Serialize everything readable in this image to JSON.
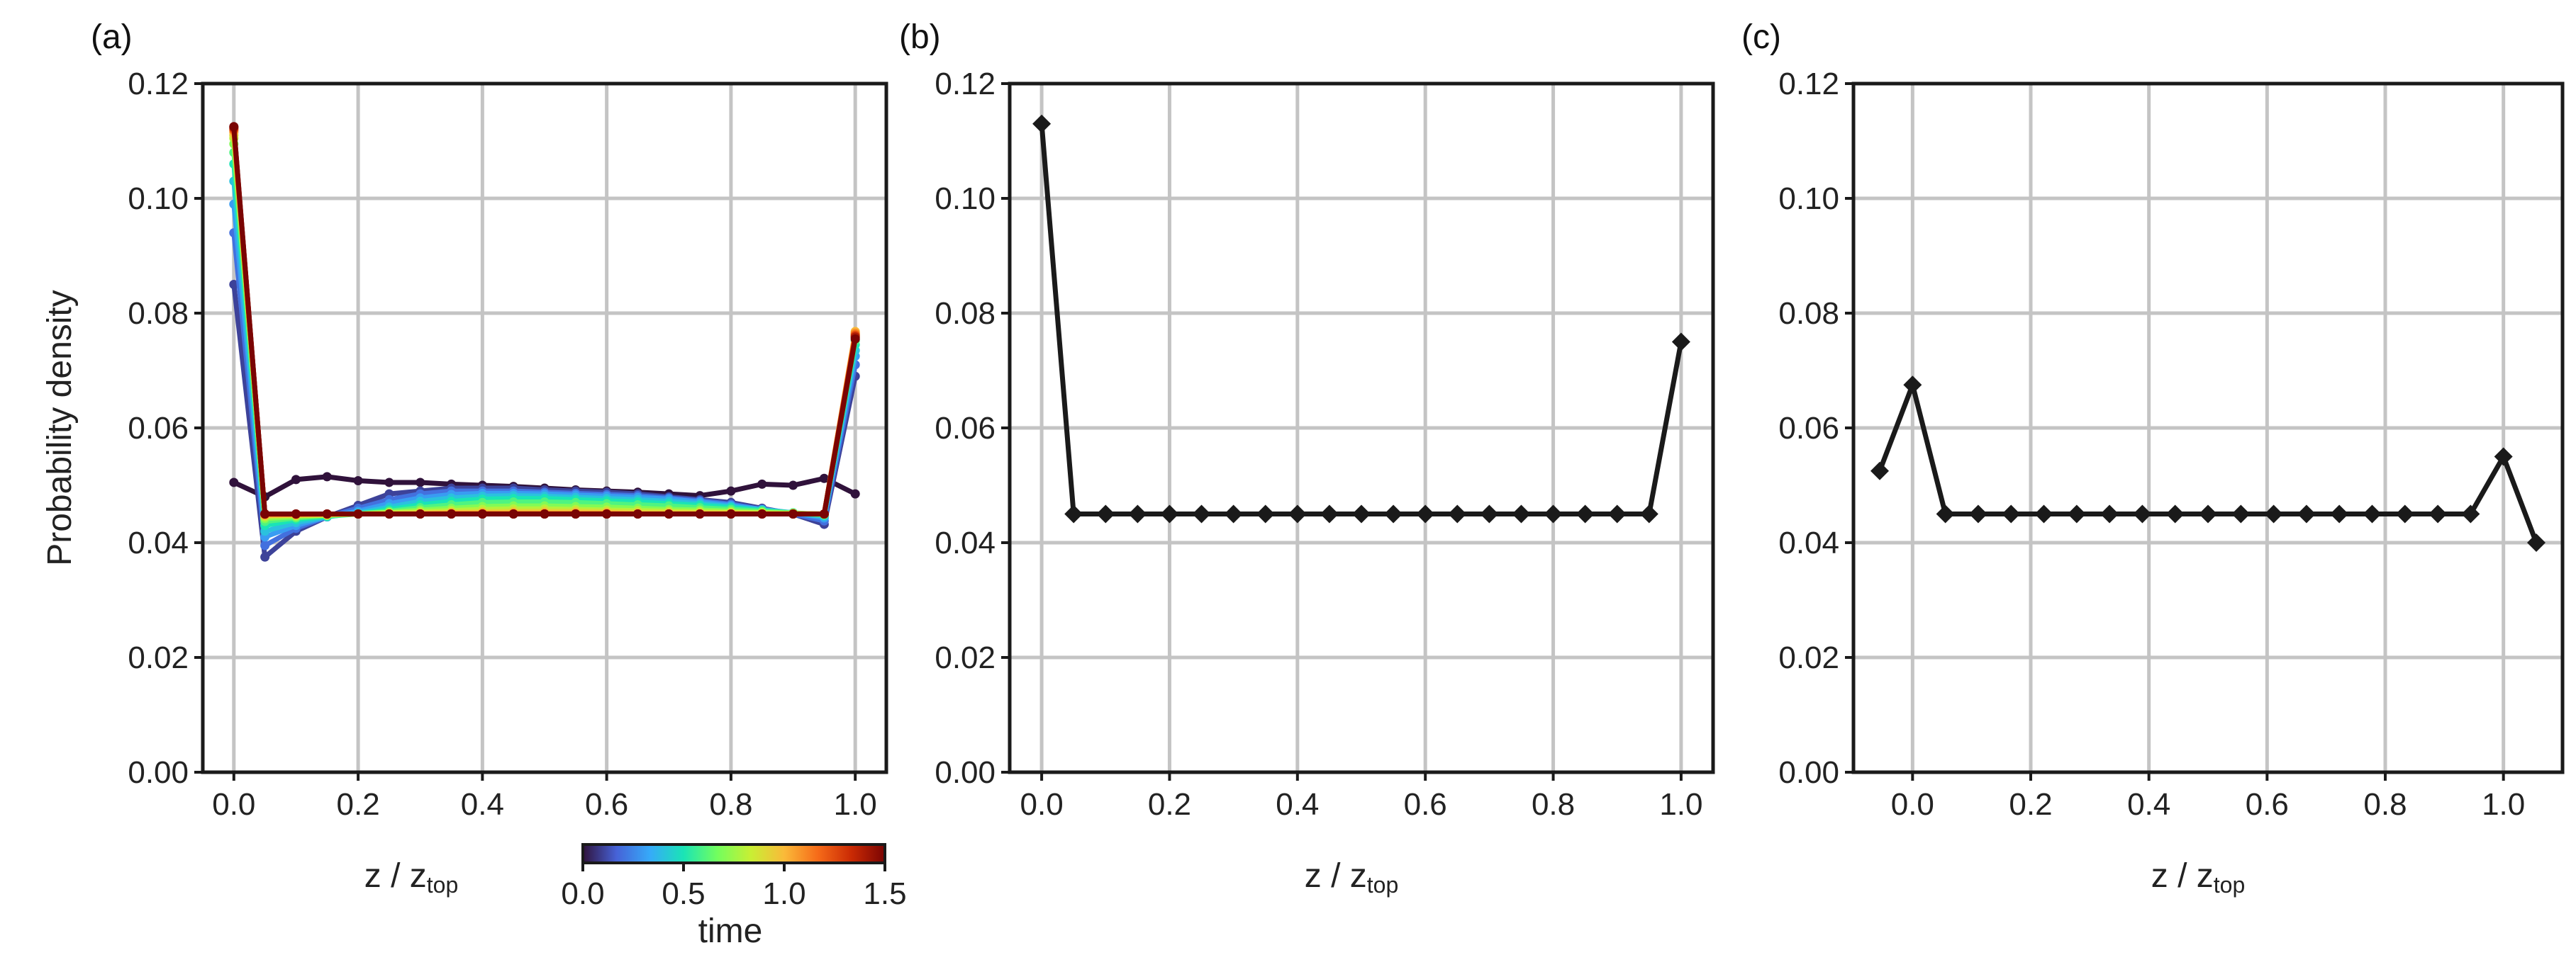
{
  "chart_data": [
    {
      "type": "line",
      "panel_label": "(a)",
      "xlabel": "z / z",
      "xlabel_sub": "top",
      "ylabel": "Probability density",
      "xlim": [
        -0.05,
        1.05
      ],
      "ylim": [
        0,
        0.12
      ],
      "xticks": [
        "0.0",
        "0.2",
        "0.4",
        "0.6",
        "0.8",
        "1.0"
      ],
      "yticks": [
        "0.00",
        "0.02",
        "0.04",
        "0.06",
        "0.08",
        "0.10",
        "0.12"
      ],
      "grid": true,
      "colorbar": {
        "label": "time",
        "ticks": [
          "0.0",
          "0.5",
          "1.0",
          "1.5"
        ],
        "range": [
          0,
          1.5
        ],
        "colormap": [
          "#30123b",
          "#4662d7",
          "#36aaf9",
          "#1ae4b6",
          "#72fe5e",
          "#c8ef34",
          "#faba39",
          "#f66b19",
          "#ca2a04",
          "#7a0403"
        ]
      },
      "x": [
        0.0,
        0.05,
        0.1,
        0.15,
        0.2,
        0.25,
        0.3,
        0.35,
        0.4,
        0.45,
        0.5,
        0.55,
        0.6,
        0.65,
        0.7,
        0.75,
        0.8,
        0.85,
        0.9,
        0.95,
        1.0
      ],
      "series": [
        {
          "time": 0.0,
          "values": [
            0.0505,
            0.048,
            0.051,
            0.0515,
            0.0508,
            0.0505,
            0.0505,
            0.0502,
            0.05,
            0.0498,
            0.0495,
            0.0492,
            0.049,
            0.0488,
            0.0485,
            0.0482,
            0.049,
            0.0502,
            0.05,
            0.0512,
            0.0485
          ]
        },
        {
          "time": 0.1,
          "values": [
            0.085,
            0.0375,
            0.042,
            0.0445,
            0.0465,
            0.0485,
            0.049,
            0.0495,
            0.0495,
            0.0495,
            0.0492,
            0.049,
            0.0488,
            0.0485,
            0.048,
            0.0475,
            0.047,
            0.046,
            0.045,
            0.0432,
            0.069
          ]
        },
        {
          "time": 0.2,
          "values": [
            0.094,
            0.0395,
            0.0425,
            0.0445,
            0.046,
            0.0475,
            0.0485,
            0.049,
            0.049,
            0.049,
            0.0488,
            0.0486,
            0.0484,
            0.0482,
            0.0478,
            0.0473,
            0.0467,
            0.0458,
            0.045,
            0.0438,
            0.071
          ]
        },
        {
          "time": 0.3,
          "values": [
            0.099,
            0.041,
            0.043,
            0.0445,
            0.0455,
            0.0468,
            0.0478,
            0.0484,
            0.0486,
            0.0486,
            0.0485,
            0.0483,
            0.0481,
            0.0479,
            0.0476,
            0.0471,
            0.0465,
            0.0458,
            0.0452,
            0.0443,
            0.0725
          ]
        },
        {
          "time": 0.4,
          "values": [
            0.103,
            0.042,
            0.0435,
            0.0445,
            0.0452,
            0.0462,
            0.0472,
            0.0478,
            0.0481,
            0.0482,
            0.0481,
            0.0479,
            0.0477,
            0.0475,
            0.0472,
            0.0468,
            0.0463,
            0.0457,
            0.0452,
            0.0446,
            0.0735
          ]
        },
        {
          "time": 0.5,
          "values": [
            0.106,
            0.043,
            0.044,
            0.0446,
            0.045,
            0.0458,
            0.0466,
            0.0472,
            0.0476,
            0.0477,
            0.0477,
            0.0475,
            0.0473,
            0.0471,
            0.0468,
            0.0465,
            0.0461,
            0.0456,
            0.0452,
            0.0448,
            0.0745
          ]
        },
        {
          "time": 0.6,
          "values": [
            0.108,
            0.0437,
            0.0443,
            0.0447,
            0.045,
            0.0455,
            0.0461,
            0.0466,
            0.047,
            0.0471,
            0.0471,
            0.047,
            0.0468,
            0.0466,
            0.0464,
            0.0461,
            0.0458,
            0.0455,
            0.0452,
            0.0449,
            0.0752
          ]
        },
        {
          "time": 0.7,
          "values": [
            0.1095,
            0.0442,
            0.0445,
            0.0448,
            0.045,
            0.0453,
            0.0457,
            0.046,
            0.0463,
            0.0464,
            0.0464,
            0.0463,
            0.0462,
            0.046,
            0.0458,
            0.0457,
            0.0455,
            0.0453,
            0.0451,
            0.0449,
            0.0758
          ]
        },
        {
          "time": 0.8,
          "values": [
            0.1105,
            0.0445,
            0.0447,
            0.0448,
            0.045,
            0.0452,
            0.0454,
            0.0456,
            0.0458,
            0.0459,
            0.0459,
            0.0458,
            0.0457,
            0.0456,
            0.0455,
            0.0454,
            0.0453,
            0.0452,
            0.0451,
            0.045,
            0.0762
          ]
        },
        {
          "time": 0.9,
          "values": [
            0.111,
            0.0447,
            0.0448,
            0.0449,
            0.045,
            0.0451,
            0.0452,
            0.0453,
            0.0454,
            0.0455,
            0.0455,
            0.0455,
            0.0454,
            0.0453,
            0.0453,
            0.0452,
            0.0452,
            0.0451,
            0.0451,
            0.045,
            0.0765
          ]
        },
        {
          "time": 1.0,
          "values": [
            0.1115,
            0.0448,
            0.0449,
            0.0449,
            0.045,
            0.045,
            0.0451,
            0.0452,
            0.0452,
            0.0452,
            0.0452,
            0.0452,
            0.0452,
            0.0451,
            0.0451,
            0.0451,
            0.0451,
            0.045,
            0.045,
            0.045,
            0.0768
          ]
        },
        {
          "time": 1.1,
          "values": [
            0.1118,
            0.0449,
            0.0449,
            0.045,
            0.045,
            0.045,
            0.045,
            0.0451,
            0.0451,
            0.0451,
            0.0451,
            0.0451,
            0.0451,
            0.045,
            0.045,
            0.045,
            0.045,
            0.045,
            0.045,
            0.045,
            0.0765
          ]
        },
        {
          "time": 1.2,
          "values": [
            0.112,
            0.045,
            0.045,
            0.045,
            0.045,
            0.045,
            0.045,
            0.045,
            0.045,
            0.045,
            0.045,
            0.045,
            0.045,
            0.045,
            0.045,
            0.045,
            0.045,
            0.045,
            0.045,
            0.045,
            0.0762
          ]
        },
        {
          "time": 1.3,
          "values": [
            0.1122,
            0.045,
            0.045,
            0.045,
            0.045,
            0.045,
            0.045,
            0.045,
            0.045,
            0.045,
            0.045,
            0.045,
            0.045,
            0.045,
            0.045,
            0.045,
            0.045,
            0.045,
            0.045,
            0.045,
            0.076
          ]
        },
        {
          "time": 1.4,
          "values": [
            0.1124,
            0.045,
            0.045,
            0.045,
            0.045,
            0.045,
            0.045,
            0.045,
            0.045,
            0.045,
            0.045,
            0.045,
            0.045,
            0.045,
            0.045,
            0.045,
            0.045,
            0.045,
            0.045,
            0.045,
            0.0758
          ]
        },
        {
          "time": 1.5,
          "values": [
            0.1125,
            0.045,
            0.045,
            0.045,
            0.045,
            0.045,
            0.045,
            0.045,
            0.045,
            0.045,
            0.045,
            0.045,
            0.045,
            0.045,
            0.045,
            0.045,
            0.045,
            0.045,
            0.045,
            0.045,
            0.0755
          ]
        }
      ]
    },
    {
      "type": "line",
      "panel_label": "(b)",
      "xlabel": "z / z",
      "xlabel_sub": "top",
      "xlim": [
        -0.05,
        1.05
      ],
      "ylim": [
        0,
        0.12
      ],
      "xticks": [
        "0.0",
        "0.2",
        "0.4",
        "0.6",
        "0.8",
        "1.0"
      ],
      "yticks": [
        "0.00",
        "0.02",
        "0.04",
        "0.06",
        "0.08",
        "0.10",
        "0.12"
      ],
      "grid": true,
      "marker": "diamond",
      "color": "#1a1a1a",
      "x": [
        0.0,
        0.05,
        0.1,
        0.15,
        0.2,
        0.25,
        0.3,
        0.35,
        0.4,
        0.45,
        0.5,
        0.55,
        0.6,
        0.65,
        0.7,
        0.75,
        0.8,
        0.85,
        0.9,
        0.95,
        1.0
      ],
      "values": [
        0.113,
        0.045,
        0.045,
        0.045,
        0.045,
        0.045,
        0.045,
        0.045,
        0.045,
        0.045,
        0.045,
        0.045,
        0.045,
        0.045,
        0.045,
        0.045,
        0.045,
        0.045,
        0.045,
        0.045,
        0.075
      ]
    },
    {
      "type": "line",
      "panel_label": "(c)",
      "xlabel": "z / z",
      "xlabel_sub": "top",
      "xlim": [
        -0.1,
        1.1
      ],
      "ylim": [
        0,
        0.12
      ],
      "xticks": [
        "0.0",
        "0.2",
        "0.4",
        "0.6",
        "0.8",
        "1.0"
      ],
      "yticks": [
        "0.00",
        "0.02",
        "0.04",
        "0.06",
        "0.08",
        "0.10",
        "0.12"
      ],
      "grid": true,
      "marker": "diamond",
      "color": "#1a1a1a",
      "x": [
        -0.0556,
        0.0,
        0.0556,
        0.1111,
        0.1667,
        0.2222,
        0.2778,
        0.3333,
        0.3889,
        0.4444,
        0.5,
        0.5556,
        0.6111,
        0.6667,
        0.7222,
        0.7778,
        0.8333,
        0.8889,
        0.9444,
        1.0,
        1.0556
      ],
      "values": [
        0.0525,
        0.0675,
        0.045,
        0.045,
        0.045,
        0.045,
        0.045,
        0.045,
        0.045,
        0.045,
        0.045,
        0.045,
        0.045,
        0.045,
        0.045,
        0.045,
        0.045,
        0.045,
        0.045,
        0.055,
        0.04
      ]
    }
  ]
}
